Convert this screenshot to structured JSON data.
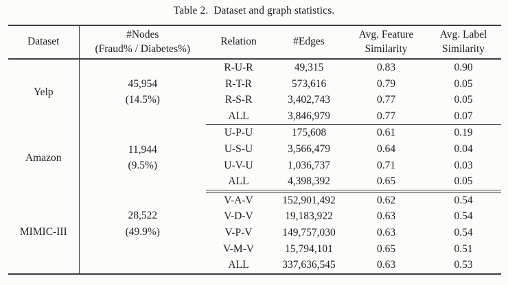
{
  "caption": "Table 2.  Dataset and graph statistics.",
  "colors": {
    "rule": "#3e3e3e",
    "text": "#1d1d1d",
    "background": "#fcfcfa"
  },
  "table": {
    "headers": {
      "dataset": "Dataset",
      "nodes_line1": "#Nodes",
      "nodes_line2": "(Fraud% / Diabetes%)",
      "relation": "Relation",
      "edges": "#Edges",
      "feature_line1": "Avg. Feature",
      "feature_line2": "Similarity",
      "label_line1": "Avg. Label",
      "label_line2": "Similarity"
    },
    "sections": [
      {
        "dataset": "Yelp",
        "nodes": "45,954",
        "nodes_pct": "(14.5%)",
        "rows": [
          {
            "relation": "R-U-R",
            "edges": "49,315",
            "feature": "0.83",
            "label": "0.90"
          },
          {
            "relation": "R-T-R",
            "edges": "573,616",
            "feature": "0.79",
            "label": "0.05"
          },
          {
            "relation": "R-S-R",
            "edges": "3,402,743",
            "feature": "0.77",
            "label": "0.05"
          },
          {
            "relation": "ALL",
            "edges": "3,846,979",
            "feature": "0.77",
            "label": "0.07"
          }
        ]
      },
      {
        "dataset": "Amazon",
        "nodes": "11,944",
        "nodes_pct": "(9.5%)",
        "rows": [
          {
            "relation": "U-P-U",
            "edges": "175,608",
            "feature": "0.61",
            "label": "0.19"
          },
          {
            "relation": "U-S-U",
            "edges": "3,566,479",
            "feature": "0.64",
            "label": "0.04"
          },
          {
            "relation": "U-V-U",
            "edges": "1,036,737",
            "feature": "0.71",
            "label": "0.03"
          },
          {
            "relation": "ALL",
            "edges": "4,398,392",
            "feature": "0.65",
            "label": "0.05"
          }
        ]
      },
      {
        "dataset": "MIMIC-III",
        "nodes": "28,522",
        "nodes_pct": "(49.9%)",
        "rows": [
          {
            "relation": "V-A-V",
            "edges": "152,901,492",
            "feature": "0.62",
            "label": "0.54"
          },
          {
            "relation": "V-D-V",
            "edges": "19,183,922",
            "feature": "0.63",
            "label": "0.54"
          },
          {
            "relation": "V-P-V",
            "edges": "149,757,030",
            "feature": "0.63",
            "label": "0.54"
          },
          {
            "relation": "V-M-V",
            "edges": "15,794,101",
            "feature": "0.65",
            "label": "0.51"
          },
          {
            "relation": "ALL",
            "edges": "337,636,545",
            "feature": "0.63",
            "label": "0.53"
          }
        ]
      }
    ]
  }
}
